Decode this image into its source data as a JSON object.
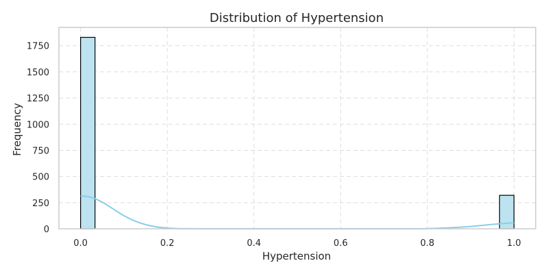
{
  "chart_data": {
    "type": "bar",
    "title": "Distribution of Hypertension",
    "xlabel": "Hypertension",
    "ylabel": "Frequency",
    "xlim": [
      -0.05,
      1.05
    ],
    "ylim": [
      0,
      1925
    ],
    "x_ticks": [
      0.0,
      0.2,
      0.4,
      0.6,
      0.8,
      1.0
    ],
    "x_tick_labels": [
      "0.0",
      "0.2",
      "0.4",
      "0.6",
      "0.8",
      "1.0"
    ],
    "y_ticks": [
      0,
      250,
      500,
      750,
      1000,
      1250,
      1500,
      1750
    ],
    "y_tick_labels": [
      "0",
      "250",
      "500",
      "750",
      "1000",
      "1250",
      "1500",
      "1750"
    ],
    "grid": true,
    "bin_width": 0.0333,
    "bars": [
      {
        "x_start": 0.0,
        "x_end": 0.0333,
        "value": 1830
      },
      {
        "x_start": 0.9667,
        "x_end": 1.0,
        "value": 320
      }
    ],
    "kde": {
      "x": [
        0.0,
        0.025,
        0.05,
        0.075,
        0.1,
        0.125,
        0.15,
        0.175,
        0.2,
        0.225,
        0.25,
        0.3,
        0.4,
        0.5,
        0.6,
        0.7,
        0.75,
        0.8,
        0.85,
        0.9,
        0.95,
        1.0
      ],
      "y": [
        315,
        300,
        255,
        190,
        125,
        75,
        40,
        18,
        7,
        2,
        1,
        0,
        0,
        0,
        0,
        0,
        0,
        2,
        9,
        22,
        42,
        58
      ]
    },
    "colors": {
      "bar_fill": "#bde3f0",
      "bar_edge": "#000000",
      "kde_line": "#87ceeb",
      "grid": "#dddddd",
      "frame": "#cccccc",
      "text": "#262626"
    }
  }
}
